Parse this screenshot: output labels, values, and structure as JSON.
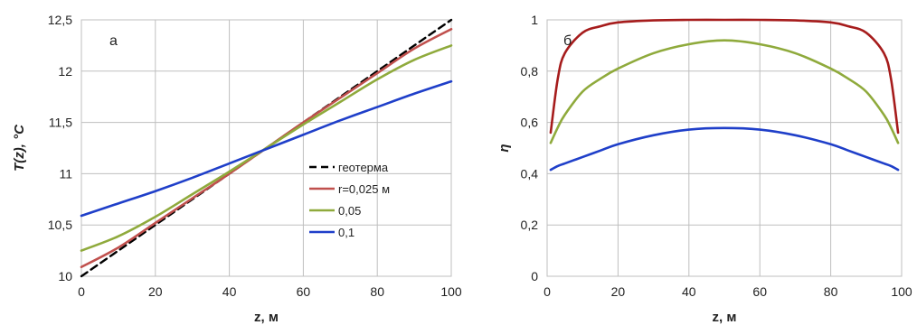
{
  "chart_data": [
    {
      "type": "line",
      "panel_label": "а",
      "xlabel": "z, м",
      "ylabel": "T(z), °C",
      "xlim": [
        0,
        100
      ],
      "ylim": [
        10,
        12.5
      ],
      "x_ticks": [
        "0",
        "20",
        "40",
        "60",
        "80",
        "100"
      ],
      "y_ticks": [
        "10",
        "10,5",
        "11",
        "11,5",
        "12",
        "12,5"
      ],
      "grid": true,
      "legend_position": "bottom-right",
      "x": [
        0,
        10,
        20,
        30,
        40,
        50,
        60,
        70,
        80,
        90,
        100
      ],
      "series": [
        {
          "name": "геотерма",
          "color": "#000000",
          "dash": "dashed",
          "values": [
            10.0,
            10.25,
            10.5,
            10.75,
            11.0,
            11.25,
            11.5,
            11.75,
            12.0,
            12.25,
            12.5
          ]
        },
        {
          "name": "r=0,025 м",
          "color": "#c0504d",
          "dash": "solid",
          "values": [
            10.09,
            10.28,
            10.52,
            10.76,
            11.0,
            11.25,
            11.5,
            11.74,
            11.98,
            12.22,
            12.41
          ]
        },
        {
          "name": "0,05",
          "color": "#8faa3c",
          "dash": "solid",
          "values": [
            10.25,
            10.39,
            10.58,
            10.8,
            11.02,
            11.25,
            11.48,
            11.7,
            11.92,
            12.11,
            12.25
          ]
        },
        {
          "name": "0,1",
          "color": "#1f3fc9",
          "dash": "solid",
          "values": [
            10.59,
            10.71,
            10.83,
            10.96,
            11.1,
            11.24,
            11.38,
            11.52,
            11.65,
            11.78,
            11.9
          ]
        }
      ]
    },
    {
      "type": "line",
      "panel_label": "б",
      "xlabel": "z, м",
      "ylabel": "η",
      "xlim": [
        0,
        100
      ],
      "ylim": [
        0,
        1
      ],
      "x_ticks": [
        "0",
        "20",
        "40",
        "60",
        "80",
        "100"
      ],
      "y_ticks": [
        "0",
        "0,2",
        "0,4",
        "0,6",
        "0,8",
        "1"
      ],
      "grid": true,
      "x": [
        1,
        3,
        5,
        10,
        15,
        20,
        30,
        40,
        50,
        60,
        70,
        80,
        85,
        90,
        95,
        97,
        99
      ],
      "series": [
        {
          "color": "#a61c1c",
          "values": [
            0.56,
            0.77,
            0.87,
            0.95,
            0.975,
            0.99,
            0.998,
            1.0,
            1.0,
            1.0,
            0.998,
            0.99,
            0.975,
            0.95,
            0.87,
            0.77,
            0.56
          ]
        },
        {
          "color": "#8faa3c",
          "values": [
            0.52,
            0.58,
            0.63,
            0.72,
            0.77,
            0.81,
            0.87,
            0.905,
            0.92,
            0.905,
            0.87,
            0.81,
            0.77,
            0.72,
            0.63,
            0.58,
            0.52
          ]
        },
        {
          "color": "#1f3fc9",
          "values": [
            0.415,
            0.43,
            0.44,
            0.465,
            0.49,
            0.515,
            0.55,
            0.572,
            0.578,
            0.572,
            0.55,
            0.515,
            0.49,
            0.465,
            0.44,
            0.43,
            0.415
          ]
        }
      ]
    }
  ]
}
